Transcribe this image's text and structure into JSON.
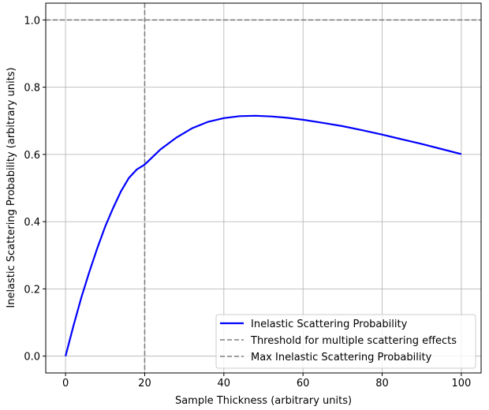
{
  "chart_data": {
    "type": "line",
    "title": "",
    "xlabel": "Sample Thickness (arbitrary units)",
    "ylabel": "Inelastic Scattering Probability (arbitrary units)",
    "xlim": [
      -5,
      105
    ],
    "ylim": [
      -0.05,
      1.05
    ],
    "xticks": [
      0,
      20,
      40,
      60,
      80,
      100
    ],
    "xtick_labels": [
      "0",
      "20",
      "40",
      "60",
      "80",
      "100"
    ],
    "yticks": [
      0.0,
      0.2,
      0.4,
      0.6,
      0.8,
      1.0
    ],
    "ytick_labels": [
      "0.0",
      "0.2",
      "0.4",
      "0.6",
      "0.8",
      "1.0"
    ],
    "grid": true,
    "legend_position": "lower right",
    "series": [
      {
        "name": "Inelastic Scattering Probability",
        "color": "#0000ff",
        "style": "solid",
        "x": [
          0,
          2,
          4,
          6,
          8,
          10,
          12,
          14,
          16,
          18,
          20,
          24,
          28,
          32,
          36,
          40,
          44,
          48,
          52,
          56,
          60,
          65,
          70,
          75,
          80,
          85,
          90,
          95,
          100
        ],
        "y": [
          0.0,
          0.09,
          0.175,
          0.25,
          0.32,
          0.385,
          0.44,
          0.49,
          0.53,
          0.555,
          0.57,
          0.615,
          0.65,
          0.678,
          0.697,
          0.708,
          0.714,
          0.715,
          0.713,
          0.709,
          0.703,
          0.694,
          0.684,
          0.672,
          0.659,
          0.645,
          0.631,
          0.616,
          0.601
        ]
      },
      {
        "name": "Threshold for multiple scattering effects",
        "color": "#808080",
        "style": "dashed",
        "orientation": "vertical",
        "x": 20
      },
      {
        "name": "Max Inelastic Scattering Probability",
        "color": "#808080",
        "style": "dashed",
        "orientation": "horizontal",
        "y": 1.0
      }
    ]
  }
}
